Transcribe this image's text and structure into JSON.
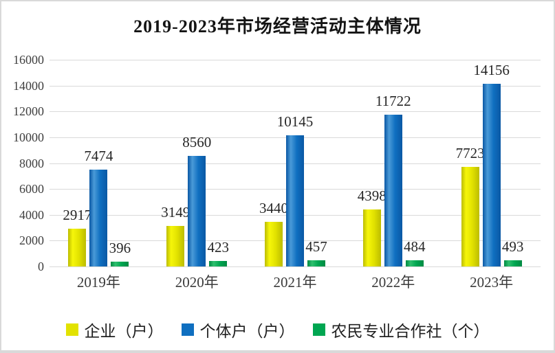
{
  "window": {
    "background": "#ffffff",
    "border_color": "#d9d9d9"
  },
  "chart_data": {
    "type": "bar",
    "title": "2019-2023年市场经营活动主体情况",
    "xlabel": "",
    "ylabel": "",
    "categories": [
      "2019年",
      "2020年",
      "2021年",
      "2022年",
      "2023年"
    ],
    "series": [
      {
        "key": "enterprises",
        "name": "企业（户）",
        "values": [
          2917,
          3149,
          3440,
          4398,
          7723
        ],
        "gradient": {
          "light": "#f6f60a",
          "main": "#e2e200",
          "dark": "#bcbc00"
        }
      },
      {
        "key": "individual-businesses",
        "name": "个体户（户）",
        "values": [
          7474,
          8560,
          10145,
          11722,
          14156
        ],
        "gradient": {
          "light": "#4a9ad8",
          "main": "#0f6fc0",
          "dark": "#0a58a4"
        }
      },
      {
        "key": "farmer-cooperatives",
        "name": "农民专业合作社（个）",
        "values": [
          396,
          423,
          457,
          484,
          493
        ],
        "gradient": {
          "light": "#2fbf6e",
          "main": "#00a651",
          "dark": "#008a43"
        }
      }
    ],
    "ylim": [
      0,
      16000
    ],
    "yticks": [
      0,
      2000,
      4000,
      6000,
      8000,
      10000,
      12000,
      14000,
      16000
    ],
    "grid": true,
    "value_labels": true,
    "legend_position": "bottom",
    "text_color": "#3f3f3f",
    "gridline_color": "#d9d9d9"
  }
}
